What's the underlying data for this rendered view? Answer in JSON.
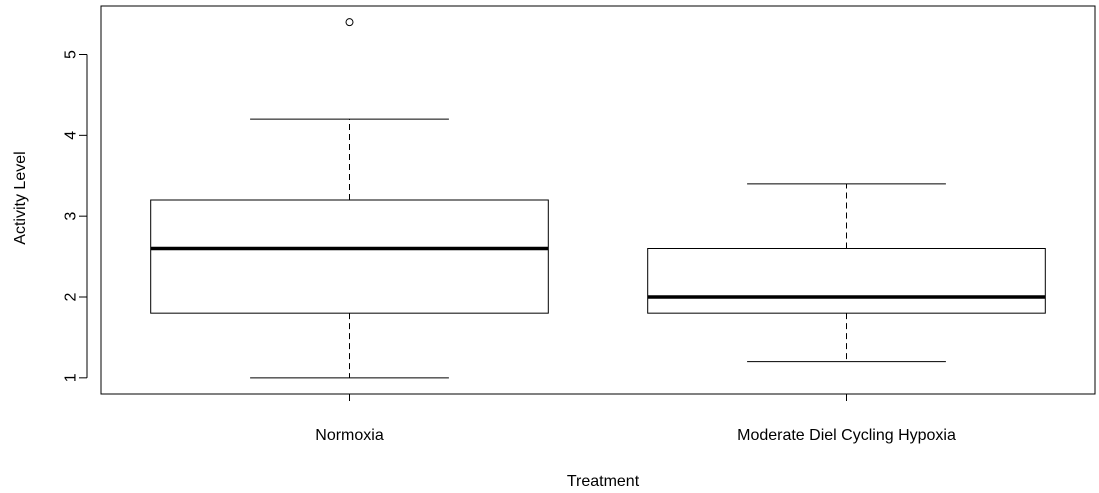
{
  "chart_data": {
    "type": "boxplot",
    "title": "",
    "xlabel": "Treatment",
    "ylabel": "Activity Level",
    "categories": [
      "Normoxia",
      "Moderate Diel Cycling Hypoxia"
    ],
    "boxes": [
      {
        "category": "Normoxia",
        "whisker_low": 1.0,
        "q1": 1.8,
        "median": 2.6,
        "q3": 3.2,
        "whisker_high": 4.2,
        "outliers": [
          5.4
        ]
      },
      {
        "category": "Moderate Diel Cycling Hypoxia",
        "whisker_low": 1.2,
        "q1": 1.8,
        "median": 2.0,
        "q3": 2.6,
        "whisker_high": 3.4,
        "outliers": []
      }
    ],
    "yticks": [
      1,
      2,
      3,
      4,
      5
    ],
    "ytick_labels": [
      "1",
      "2",
      "3",
      "4",
      "5"
    ],
    "ylim": [
      0.8,
      5.6
    ],
    "grid": false,
    "colors": {
      "box_fill": "#ffffff",
      "stroke": "#000000"
    }
  }
}
